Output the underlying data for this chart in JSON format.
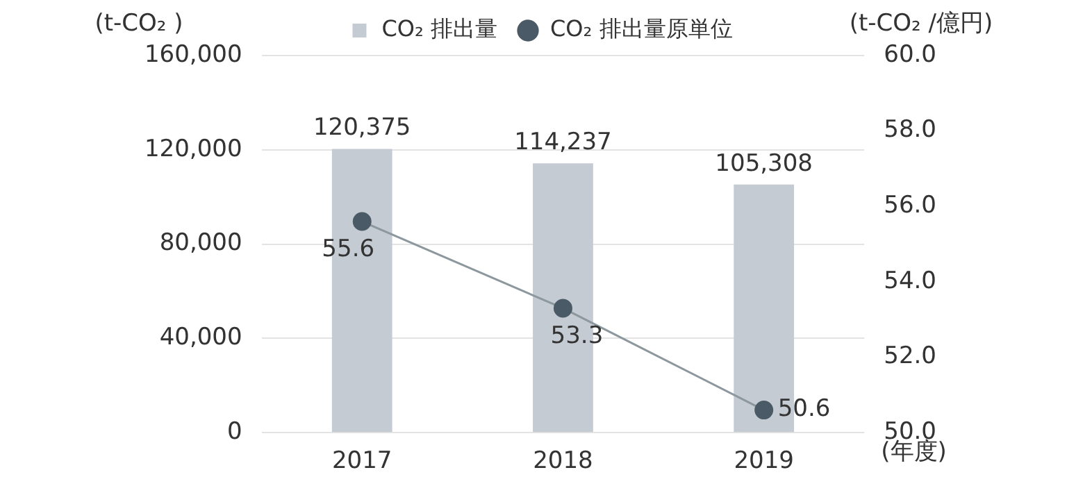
{
  "chart_data": {
    "type": "bar",
    "categories": [
      "2017",
      "2018",
      "2019"
    ],
    "xlabel": "(年度)",
    "ylabel": "(t-CO₂ )",
    "y2label": "(t-CO₂ /億円)",
    "series": [
      {
        "name": "CO₂ 排出量",
        "color": "#c5cbd3",
        "values": [
          120375,
          114237,
          105308
        ],
        "value_labels": [
          "120,375",
          "114,237",
          "105,308"
        ]
      },
      {
        "name": "CO₂ 排出量原単位",
        "type": "line",
        "axis": "y2",
        "color": "#4a5a66",
        "values": [
          55.6,
          53.3,
          50.6
        ],
        "value_labels": [
          "55.6",
          "53.3",
          "50.6"
        ]
      }
    ],
    "ylim": [
      0,
      160000
    ],
    "yticks": [
      0,
      {
        "value": 40000,
        "label": "40,000"
      },
      {
        "value": 80000,
        "label": "80,000"
      },
      {
        "value": 120000,
        "label": "120,000"
      },
      {
        "value": 160000,
        "label": "160,000"
      }
    ],
    "y2lim": [
      50,
      60
    ],
    "y2ticks": [
      {
        "value": 50,
        "label": "50.0"
      },
      {
        "value": 52,
        "label": "52.0"
      },
      {
        "value": 54,
        "label": "54.0"
      },
      {
        "value": 56,
        "label": "56.0"
      },
      {
        "value": 58,
        "label": "58.0"
      },
      {
        "value": 60,
        "label": "60.0"
      }
    ],
    "grid": "y",
    "legend": "top",
    "marker": "circle",
    "line_style": "solid"
  }
}
